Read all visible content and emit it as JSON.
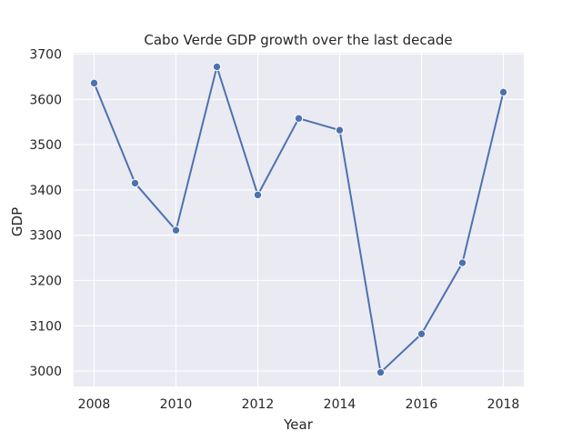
{
  "chart_data": {
    "type": "line",
    "title": "Cabo Verde GDP growth over the last decade",
    "xlabel": "Year",
    "ylabel": "GDP",
    "x": [
      2008,
      2009,
      2010,
      2011,
      2012,
      2013,
      2014,
      2015,
      2016,
      2017,
      2018
    ],
    "series": [
      {
        "values": [
          3636,
          3415,
          3311,
          3672,
          3389,
          3558,
          3532,
          2997,
          3082,
          3239,
          3616
        ]
      }
    ],
    "xticks": [
      2008,
      2010,
      2012,
      2014,
      2016,
      2018
    ],
    "yticks": [
      3000,
      3100,
      3200,
      3300,
      3400,
      3500,
      3600,
      3700
    ],
    "xlim": [
      2007.5,
      2018.5
    ],
    "ylim": [
      2966,
      3703
    ],
    "grid": true,
    "legend": "none",
    "colors": {
      "plot_background": "#eaeaf2",
      "grid": "#ffffff",
      "line": "#4c72b0",
      "marker_edge": "#ffffff"
    }
  }
}
